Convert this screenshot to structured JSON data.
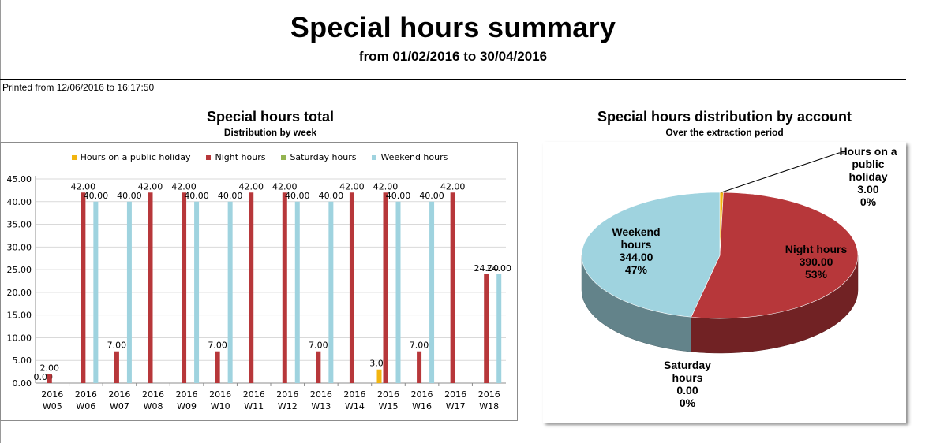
{
  "report": {
    "title": "Special hours summary",
    "subtitle": "from 01/02/2016 to 30/04/2016",
    "printed": "Printed from 12/06/2016 to 16:17:50"
  },
  "colors": {
    "public_holiday": "#f2b50f",
    "night": "#b7373a",
    "saturday": "#94b451",
    "weekend": "#9fd3df",
    "gridline": "#d9d9d9"
  },
  "chart_data": [
    {
      "type": "bar",
      "title": "Special hours total",
      "subtitle": "Distribution by week",
      "legend_position": "top",
      "grid": true,
      "ylim": [
        0,
        45
      ],
      "y_ticks": [
        "0.00",
        "5.00",
        "10.00",
        "15.00",
        "20.00",
        "25.00",
        "30.00",
        "35.00",
        "40.00",
        "45.00"
      ],
      "categories": [
        [
          "2016",
          "W05"
        ],
        [
          "2016",
          "W06"
        ],
        [
          "2016",
          "W07"
        ],
        [
          "2016",
          "W08"
        ],
        [
          "2016",
          "W09"
        ],
        [
          "2016",
          "W10"
        ],
        [
          "2016",
          "W11"
        ],
        [
          "2016",
          "W12"
        ],
        [
          "2016",
          "W13"
        ],
        [
          "2016",
          "W14"
        ],
        [
          "2016",
          "W15"
        ],
        [
          "2016",
          "W16"
        ],
        [
          "2016",
          "W17"
        ],
        [
          "2016",
          "W18"
        ]
      ],
      "series": [
        {
          "name": "Hours on a public holiday",
          "color_key": "public_holiday",
          "values": [
            0,
            null,
            null,
            null,
            null,
            null,
            null,
            null,
            null,
            null,
            3,
            null,
            null,
            null
          ],
          "labels": [
            "0.00",
            "",
            "",
            "",
            "",
            "",
            "",
            "",
            "",
            "",
            "3.00",
            "",
            "",
            ""
          ]
        },
        {
          "name": "Night hours",
          "color_key": "night",
          "values": [
            2,
            42,
            7,
            42,
            42,
            7,
            42,
            42,
            7,
            42,
            42,
            7,
            42,
            24
          ],
          "labels": [
            "2.00",
            "42.00",
            "7.00",
            "42.00",
            "42.00",
            "7.00",
            "42.00",
            "42.00",
            "7.00",
            "42.00",
            "42.00",
            "7.00",
            "42.00",
            "24.00"
          ]
        },
        {
          "name": "Saturday hours",
          "color_key": "saturday",
          "values": [
            null,
            null,
            null,
            null,
            null,
            null,
            null,
            null,
            null,
            null,
            null,
            null,
            null,
            null
          ],
          "labels": [
            "",
            "",
            "",
            "",
            "",
            "",
            "",
            "",
            "",
            "",
            "",
            "",
            "",
            ""
          ]
        },
        {
          "name": "Weekend hours",
          "color_key": "weekend",
          "values": [
            null,
            40,
            40,
            null,
            40,
            40,
            null,
            40,
            40,
            null,
            40,
            40,
            null,
            24
          ],
          "labels": [
            "",
            "40.00",
            "40.00",
            "",
            "40.00",
            "40.00",
            "",
            "40.00",
            "40.00",
            "",
            "40.00",
            "40.00",
            "",
            "24.00"
          ]
        }
      ]
    },
    {
      "type": "pie",
      "title": "Special hours distribution by account",
      "subtitle": "Over the extraction period",
      "slices": [
        {
          "name": "Hours on a public holiday",
          "label_lines": [
            "Hours on a",
            "public",
            "holiday"
          ],
          "value": 3.0,
          "value_label": "3.00",
          "percent_label": "0%",
          "color_key": "public_holiday"
        },
        {
          "name": "Night hours",
          "label_lines": [
            "Night hours"
          ],
          "value": 390.0,
          "value_label": "390.00",
          "percent_label": "53%",
          "color_key": "night"
        },
        {
          "name": "Saturday hours",
          "label_lines": [
            "Saturday",
            "hours"
          ],
          "value": 0.0,
          "value_label": "0.00",
          "percent_label": "0%",
          "color_key": "saturday"
        },
        {
          "name": "Weekend hours",
          "label_lines": [
            "Weekend",
            "hours"
          ],
          "value": 344.0,
          "value_label": "344.00",
          "percent_label": "47%",
          "color_key": "weekend"
        }
      ]
    }
  ]
}
